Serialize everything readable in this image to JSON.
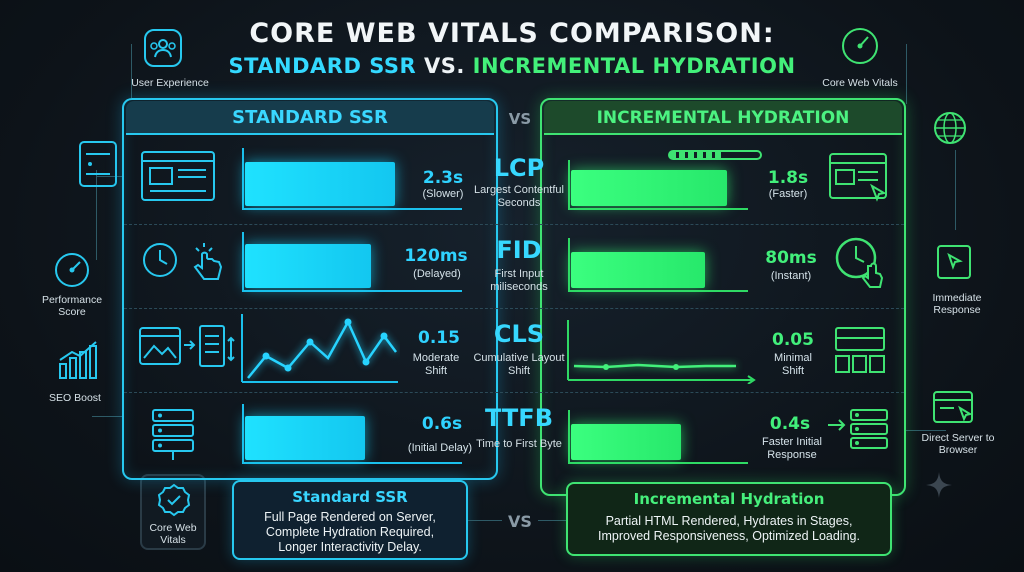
{
  "title": {
    "line1": "CORE WEB VITALS COMPARISON:",
    "line2_part1": "STANDARD SSR",
    "line2_part2": "VS.",
    "line2_part3": "INCREMENTAL HYDRATION"
  },
  "headers": {
    "left": "STANDARD SSR",
    "vs": "VS",
    "right": "INCREMENTAL HYDRATION"
  },
  "metrics": [
    {
      "name": "LCP",
      "desc": "Largest Contentful Seconds",
      "left_value": "2.3s",
      "left_note": "(Slower)",
      "right_value": "1.8s",
      "right_note": "(Faster)"
    },
    {
      "name": "FID",
      "desc": "First Input miliseconds",
      "left_value": "120ms",
      "left_note": "(Delayed)",
      "right_value": "80ms",
      "right_note": "(Instant)"
    },
    {
      "name": "CLS",
      "desc": "Cumulative Layout Shift",
      "left_value": "0.15",
      "left_note": "Moderate Shift",
      "right_value": "0.05",
      "right_note": "Minimal Shift"
    },
    {
      "name": "TTFB",
      "desc": "Time to First Byte",
      "left_value": "0.6s",
      "left_note": "(Initial Delay)",
      "right_value": "0.4s",
      "right_note": "Faster Initial Response"
    }
  ],
  "left_side": {
    "user_experience": "User Experience",
    "performance_score": "Performance Score",
    "seo_boost": "SEO Boost",
    "core_web_vitals": "Core Web Vitals"
  },
  "right_side": {
    "core_web_vitals": "Core Web Vitals",
    "immediate_response": "Immediate Response",
    "direct_server": "Direct Server to Browser"
  },
  "bottom": {
    "left_title": "Standard SSR",
    "left_lines": [
      "Full Page Rendered on Server,",
      "Complete Hydration Required,",
      "Longer Interactivity Delay."
    ],
    "vs": "VS",
    "right_title": "Incremental Hydration",
    "right_lines": [
      "Partial HTML Rendered, Hydrates in Stages,",
      "Improved Responsiveness, Optimized Loading."
    ]
  },
  "colors": {
    "cyan": "#27c8ef",
    "green": "#3fe372",
    "background": "#0e141c"
  }
}
